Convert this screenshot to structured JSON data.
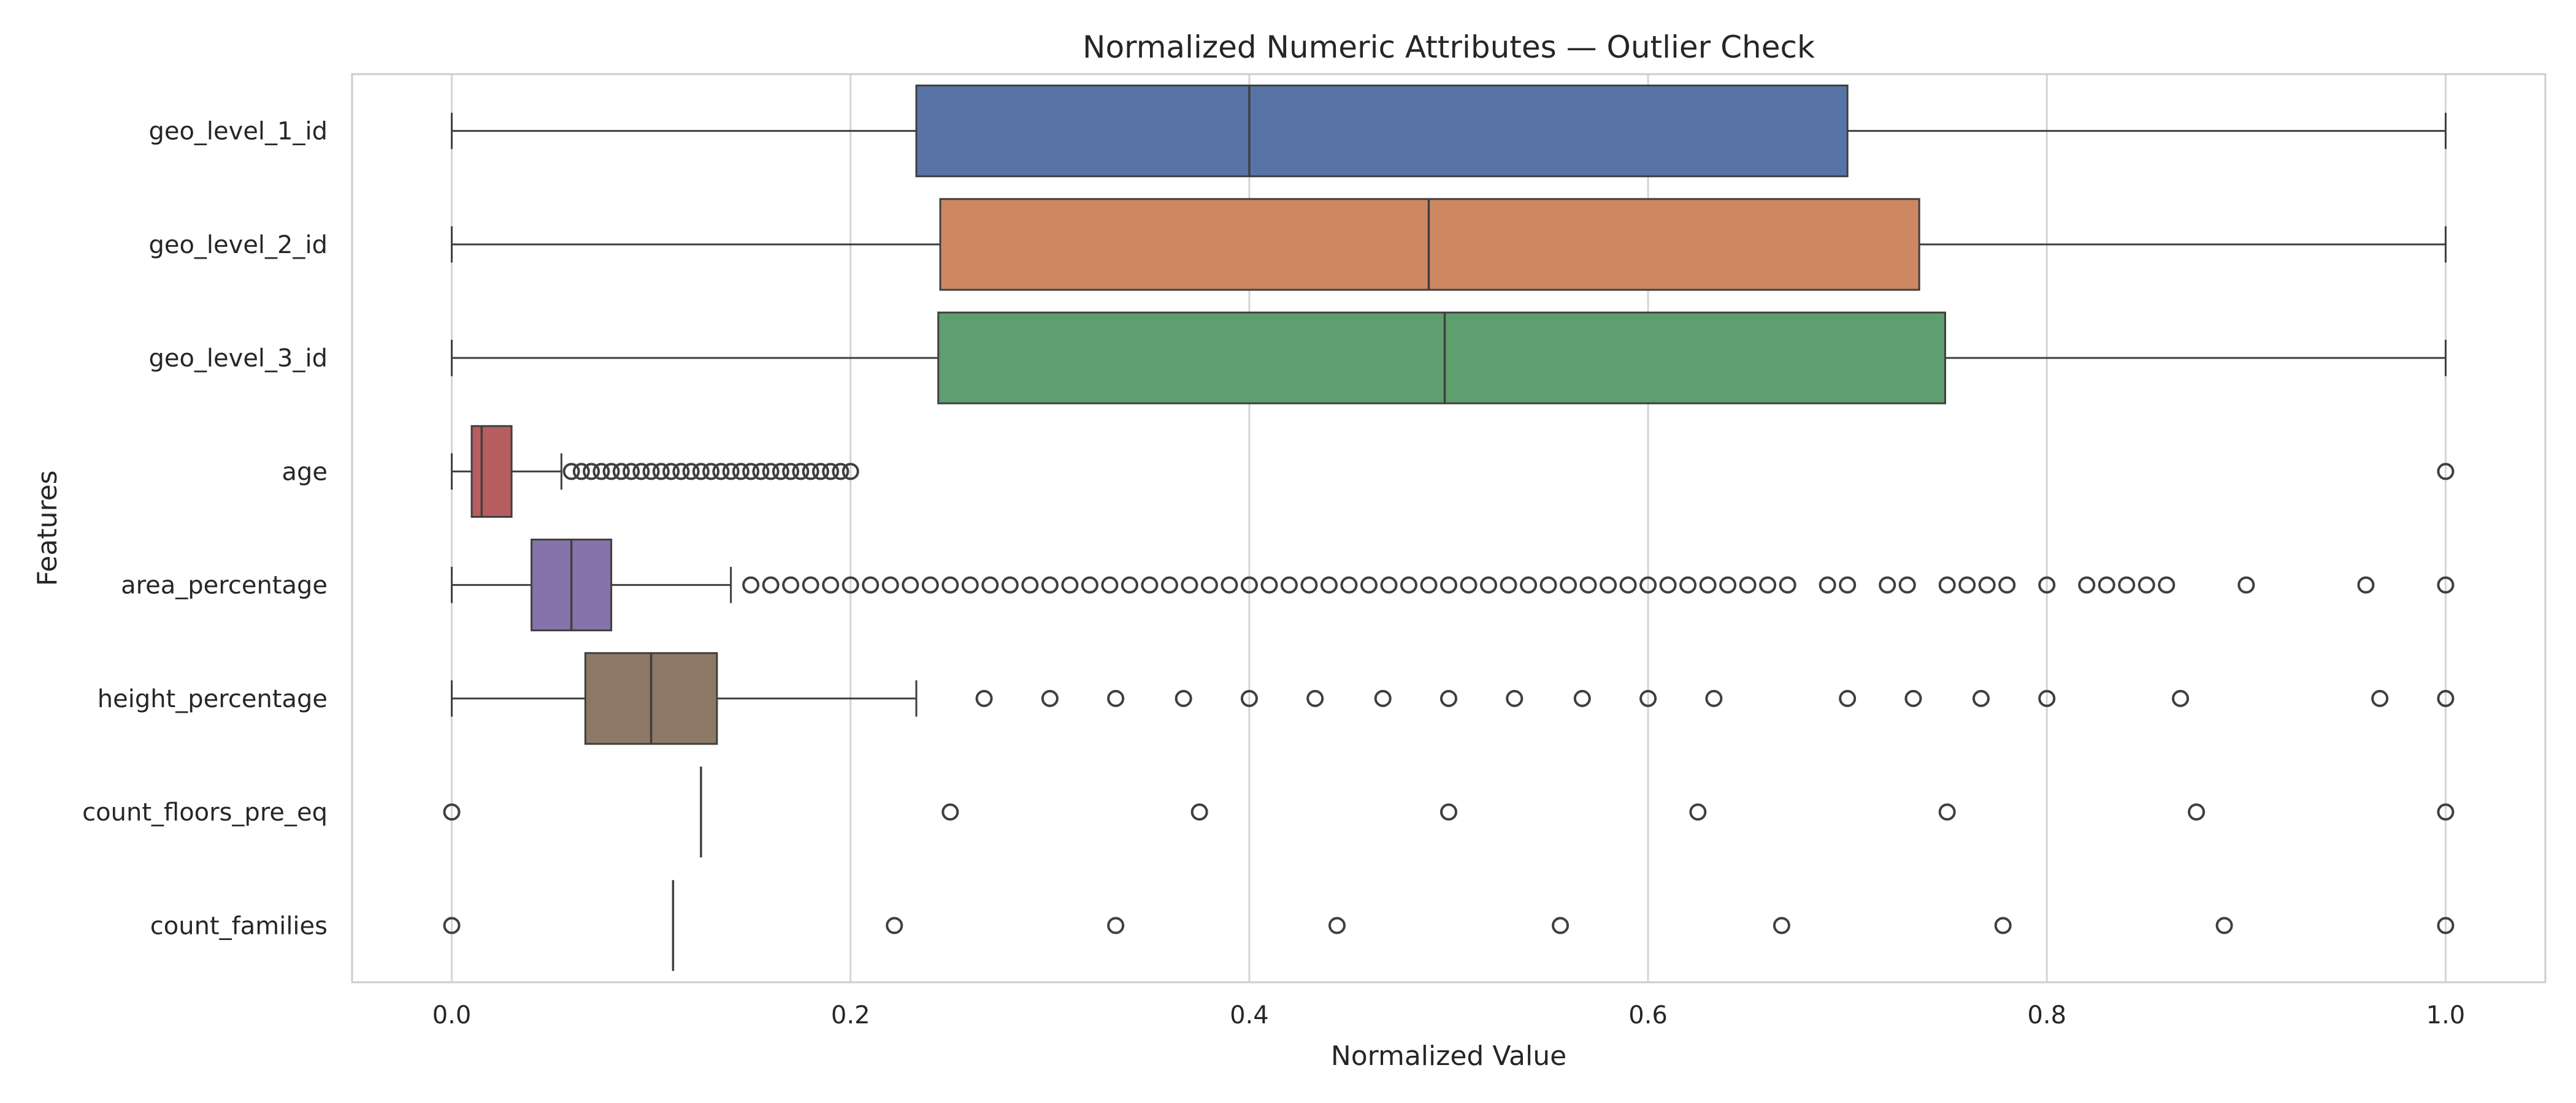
{
  "chart_data": {
    "type": "boxplot",
    "orientation": "horizontal",
    "title": "Normalized Numeric Attributes — Outlier Check",
    "xlabel": "Normalized Value",
    "ylabel": "Features",
    "xlim": [
      -0.05,
      1.05
    ],
    "xticks": [
      0.0,
      0.2,
      0.4,
      0.6,
      0.8,
      1.0
    ],
    "xtick_labels": [
      "0.0",
      "0.2",
      "0.4",
      "0.6",
      "0.8",
      "1.0"
    ],
    "grid": "x-major",
    "series": [
      {
        "name": "geo_level_1_id",
        "color": "#5874a6",
        "whisker_low": 0.0,
        "q1": 0.233,
        "median": 0.4,
        "q3": 0.7,
        "whisker_high": 1.0,
        "outliers": []
      },
      {
        "name": "geo_level_2_id",
        "color": "#cd8862",
        "whisker_low": 0.0,
        "q1": 0.245,
        "median": 0.49,
        "q3": 0.736,
        "whisker_high": 1.0,
        "outliers": []
      },
      {
        "name": "geo_level_3_id",
        "color": "#5f9e6e",
        "whisker_low": 0.0,
        "q1": 0.244,
        "median": 0.498,
        "q3": 0.749,
        "whisker_high": 1.0,
        "outliers": []
      },
      {
        "name": "age",
        "color": "#b65d60",
        "whisker_low": 0.0,
        "q1": 0.01,
        "median": 0.015,
        "q3": 0.03,
        "whisker_high": 0.055,
        "outliers": [
          0.06,
          0.065,
          0.07,
          0.075,
          0.08,
          0.085,
          0.09,
          0.095,
          0.1,
          0.105,
          0.11,
          0.115,
          0.12,
          0.125,
          0.13,
          0.135,
          0.14,
          0.145,
          0.15,
          0.155,
          0.16,
          0.165,
          0.17,
          0.175,
          0.18,
          0.185,
          0.19,
          0.195,
          0.2,
          1.0
        ]
      },
      {
        "name": "area_percentage",
        "color": "#8573a9",
        "whisker_low": 0.0,
        "q1": 0.04,
        "median": 0.06,
        "q3": 0.08,
        "whisker_high": 0.14,
        "outliers": [
          0.15,
          0.16,
          0.17,
          0.18,
          0.19,
          0.2,
          0.21,
          0.22,
          0.23,
          0.24,
          0.25,
          0.26,
          0.27,
          0.28,
          0.29,
          0.3,
          0.31,
          0.32,
          0.33,
          0.34,
          0.35,
          0.36,
          0.37,
          0.38,
          0.39,
          0.4,
          0.41,
          0.42,
          0.43,
          0.44,
          0.45,
          0.46,
          0.47,
          0.48,
          0.49,
          0.5,
          0.51,
          0.52,
          0.53,
          0.54,
          0.55,
          0.56,
          0.57,
          0.58,
          0.59,
          0.6,
          0.61,
          0.62,
          0.63,
          0.64,
          0.65,
          0.66,
          0.67,
          0.69,
          0.7,
          0.72,
          0.73,
          0.75,
          0.76,
          0.77,
          0.78,
          0.8,
          0.82,
          0.83,
          0.84,
          0.85,
          0.86,
          0.9,
          0.96,
          1.0
        ]
      },
      {
        "name": "height_percentage",
        "color": "#8d7866",
        "whisker_low": 0.0,
        "q1": 0.067,
        "median": 0.1,
        "q3": 0.133,
        "whisker_high": 0.233,
        "outliers": [
          0.267,
          0.3,
          0.333,
          0.367,
          0.4,
          0.433,
          0.467,
          0.5,
          0.533,
          0.567,
          0.6,
          0.633,
          0.7,
          0.733,
          0.767,
          0.8,
          0.867,
          0.967,
          1.0
        ]
      },
      {
        "name": "count_floors_pre_eq",
        "color": "#8d7866",
        "whisker_low": 0.125,
        "q1": 0.125,
        "median": 0.125,
        "q3": 0.125,
        "whisker_high": 0.125,
        "outliers": [
          0.0,
          0.25,
          0.375,
          0.5,
          0.625,
          0.75,
          0.875,
          1.0
        ]
      },
      {
        "name": "count_families",
        "color": "#8d7866",
        "whisker_low": 0.111,
        "q1": 0.111,
        "median": 0.111,
        "q3": 0.111,
        "whisker_high": 0.111,
        "outliers": [
          0.0,
          0.222,
          0.333,
          0.444,
          0.556,
          0.667,
          0.778,
          0.889,
          1.0
        ]
      }
    ]
  }
}
